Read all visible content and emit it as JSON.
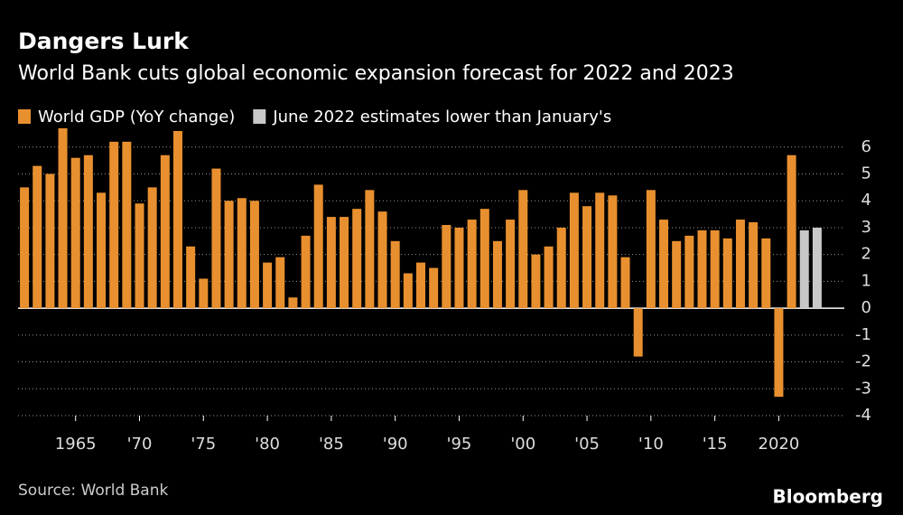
{
  "chart_data": {
    "type": "bar",
    "title": "Dangers Lurk",
    "subtitle": "World Bank cuts global economic expansion forecast for 2022 and 2023",
    "source": "Source: World Bank",
    "brand": "Bloomberg",
    "series": [
      {
        "name": "World GDP (YoY change)",
        "color": "#e8902f",
        "x": [
          1961,
          1962,
          1963,
          1964,
          1965,
          1966,
          1967,
          1968,
          1969,
          1970,
          1971,
          1972,
          1973,
          1974,
          1975,
          1976,
          1977,
          1978,
          1979,
          1980,
          1981,
          1982,
          1983,
          1984,
          1985,
          1986,
          1987,
          1988,
          1989,
          1990,
          1991,
          1992,
          1993,
          1994,
          1995,
          1996,
          1997,
          1998,
          1999,
          2000,
          2001,
          2002,
          2003,
          2004,
          2005,
          2006,
          2007,
          2008,
          2009,
          2010,
          2011,
          2012,
          2013,
          2014,
          2015,
          2016,
          2017,
          2018,
          2019,
          2020,
          2021
        ],
        "values": [
          4.5,
          5.3,
          5.0,
          6.7,
          5.6,
          5.7,
          4.3,
          6.2,
          6.2,
          3.9,
          4.5,
          5.7,
          6.6,
          2.3,
          1.1,
          5.2,
          4.0,
          4.1,
          4.0,
          1.7,
          1.9,
          0.4,
          2.7,
          4.6,
          3.4,
          3.4,
          3.7,
          4.4,
          3.6,
          2.5,
          1.3,
          1.7,
          1.5,
          3.1,
          3.0,
          3.3,
          3.7,
          2.5,
          3.3,
          4.4,
          2.0,
          2.3,
          3.0,
          4.3,
          3.8,
          4.3,
          4.2,
          1.9,
          -1.8,
          4.4,
          3.3,
          2.5,
          2.7,
          2.9,
          2.9,
          2.6,
          3.3,
          3.2,
          2.6,
          -3.3,
          5.7
        ]
      },
      {
        "name": "June 2022 estimates lower than January's",
        "color": "#c8c8c8",
        "x": [
          2022,
          2023
        ],
        "values": [
          2.9,
          3.0
        ]
      }
    ],
    "xlim": [
      1960.5,
      2023.5
    ],
    "xticks": [
      1965,
      {
        "value": 1970,
        "label": "'70"
      },
      {
        "value": 1975,
        "label": "'75"
      },
      {
        "value": 1980,
        "label": "'80"
      },
      {
        "value": 1985,
        "label": "'85"
      },
      {
        "value": 1990,
        "label": "'90"
      },
      {
        "value": 1995,
        "label": "'95"
      },
      {
        "value": 2000,
        "label": "'00"
      },
      {
        "value": 2005,
        "label": "'05"
      },
      {
        "value": 2010,
        "label": "'10"
      },
      {
        "value": 2015,
        "label": "'15"
      },
      2020
    ],
    "ylim": [
      -4,
      6.7
    ],
    "yticks": [
      -4,
      -3,
      -2,
      -1,
      0,
      1,
      2,
      3,
      4,
      5,
      6
    ],
    "grid": true
  }
}
